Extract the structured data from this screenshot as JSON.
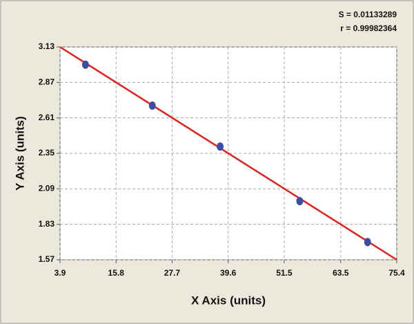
{
  "chart_data": {
    "type": "scatter",
    "annotations": [
      "S = 0.01133289",
      "r = 0.99982364"
    ],
    "x_label": "X Axis (units)",
    "y_label": "Y Axis (units)",
    "series": [
      {
        "x": [
          9.3,
          23.5,
          37.9,
          54.8,
          69.2
        ],
        "values": [
          3.0,
          2.7,
          2.4,
          2.0,
          1.7
        ],
        "color": "#3b4ea3"
      }
    ],
    "fit_line": {
      "x": [
        3.9,
        75.4
      ],
      "values": [
        3.13,
        1.57
      ],
      "color": "#e3201b"
    },
    "xlim": [
      3.9,
      75.4
    ],
    "xticks": [
      3.9,
      15.8,
      27.7,
      39.6,
      51.5,
      63.5,
      75.4
    ],
    "ylim": [
      1.57,
      3.13
    ],
    "yticks": [
      1.57,
      1.83,
      2.09,
      2.35,
      2.61,
      2.87,
      3.13
    ],
    "grid": true
  }
}
